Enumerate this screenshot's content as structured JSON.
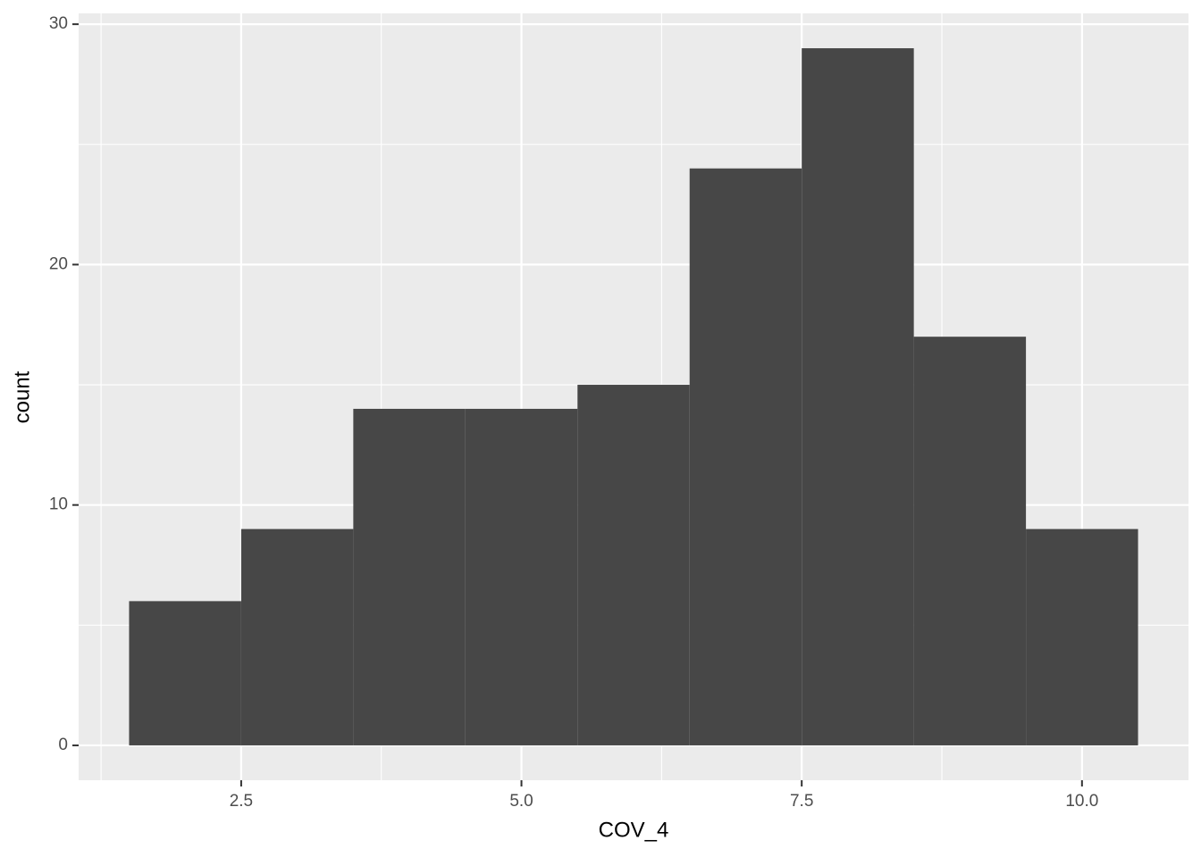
{
  "chart_data": {
    "type": "histogram",
    "x_label": "COV_4",
    "y_label": "count",
    "bins": [
      1.5,
      2.5,
      3.5,
      4.5,
      5.5,
      6.5,
      7.5,
      8.5,
      9.5,
      10.5
    ],
    "values": [
      6,
      9,
      14,
      14,
      15,
      24,
      29,
      17,
      9
    ],
    "color": "#474747",
    "xlim": [
      1.05,
      10.95
    ],
    "ylim": [
      -1.45,
      30.45
    ],
    "xticks": [
      2.5,
      {
        "value": 5,
        "label": "5.0"
      },
      7.5,
      {
        "value": 10,
        "label": "10.0"
      }
    ],
    "yticks": [
      0,
      10,
      20,
      30
    ],
    "grid": true
  }
}
